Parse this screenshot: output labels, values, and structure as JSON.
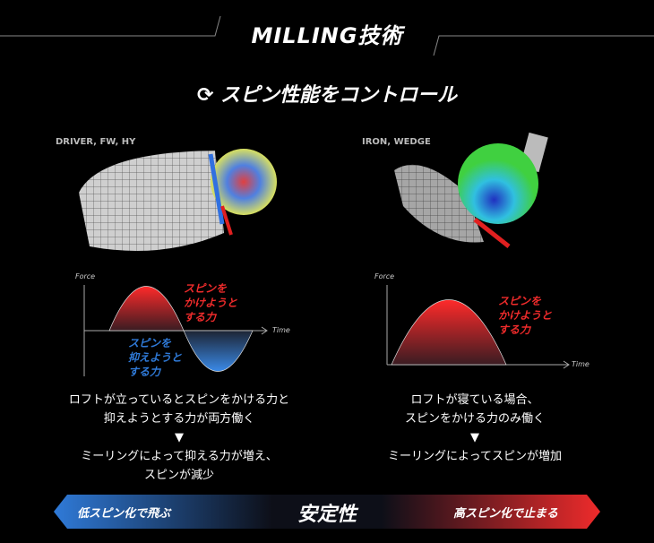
{
  "title": "MILLING技術",
  "subtitle": "スピン性能をコントロール",
  "subtitle_icon": "rotate-arrows-icon",
  "left": {
    "label": "DRIVER, FW, HY",
    "chart": {
      "y_label": "Force",
      "x_label": "Time",
      "positive_label": [
        "スピンを",
        "かけようと",
        "する力"
      ],
      "negative_label": [
        "スピンを",
        "抑えようと",
        "する力"
      ]
    },
    "desc": [
      "ロフトが立っているとスピンをかける力と",
      "抑えようとする力が両方働く"
    ],
    "arrow": "▼",
    "result": [
      "ミーリングによって抑える力が増え、",
      "スピンが減少"
    ]
  },
  "right": {
    "label": "IRON, WEDGE",
    "chart": {
      "y_label": "Force",
      "x_label": "Time",
      "positive_label": [
        "スピンを",
        "かけようと",
        "する力"
      ]
    },
    "desc": [
      "ロフトが寝ている場合、",
      "スピンをかける力のみ働く"
    ],
    "arrow": "▼",
    "result": [
      "ミーリングによってスピンが増加"
    ]
  },
  "bar": {
    "left": "低スピン化で飛ぶ",
    "center": "安定性",
    "right": "高スピン化で止まる",
    "left_color": "#2f7ad8",
    "right_color": "#ee2b2b"
  }
}
